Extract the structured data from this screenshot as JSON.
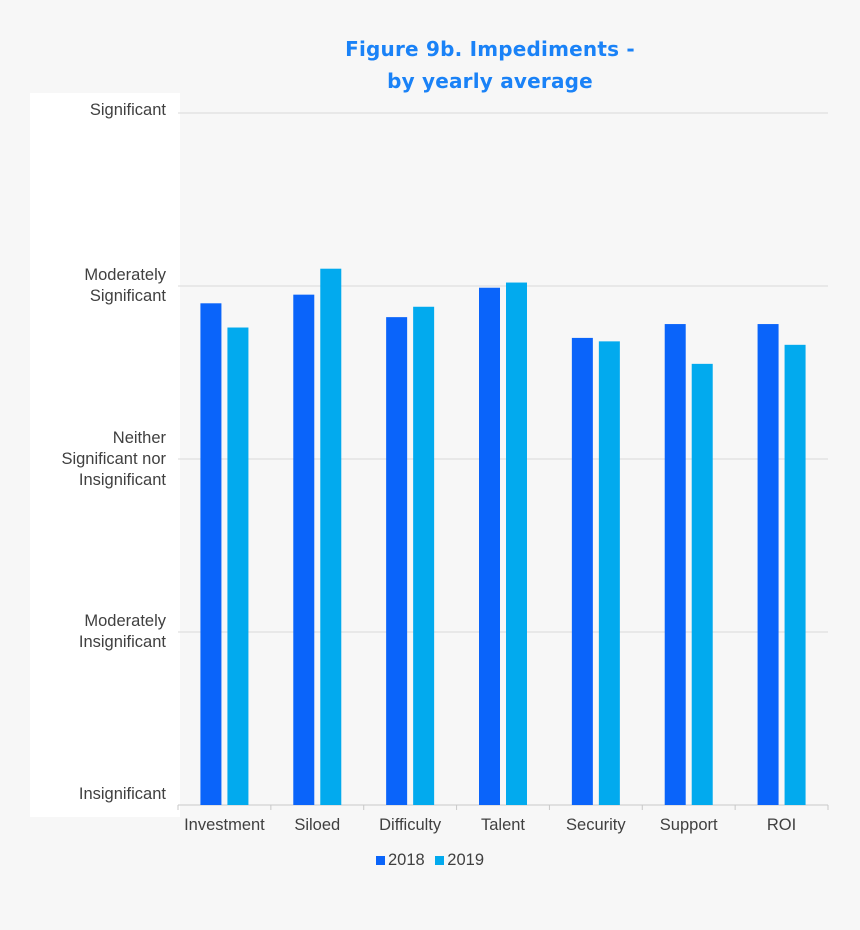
{
  "chart_data": {
    "type": "bar",
    "title": "Figure 9b. Impediments - by yearly average",
    "title_lines": [
      "Figure 9b. Impediments -",
      "by yearly average"
    ],
    "categories": [
      "Investment",
      "Siloed",
      "Difficulty",
      "Talent",
      "Security",
      "Support",
      "ROI"
    ],
    "series": [
      {
        "name": "2018",
        "color": "#0a64fa",
        "values": [
          3.9,
          3.95,
          3.82,
          3.99,
          3.7,
          3.78,
          3.78
        ]
      },
      {
        "name": "2019",
        "color": "#02aaee",
        "values": [
          3.76,
          4.1,
          3.88,
          4.02,
          3.68,
          3.55,
          3.66
        ]
      }
    ],
    "ylim": [
      1,
      5
    ],
    "y_ticks": [
      {
        "value": 5,
        "label": [
          "Significant"
        ]
      },
      {
        "value": 4,
        "label": [
          "Moderately",
          "Significant"
        ]
      },
      {
        "value": 3,
        "label": [
          "Neither",
          "Significant nor",
          "Insignificant"
        ]
      },
      {
        "value": 2,
        "label": [
          "Moderately",
          "Insignificant"
        ]
      },
      {
        "value": 1,
        "label": [
          "Insignificant"
        ]
      }
    ],
    "xlabel": "",
    "ylabel": "",
    "grid": true,
    "legend": "bottom-center",
    "title_color": "#1a82f7"
  }
}
